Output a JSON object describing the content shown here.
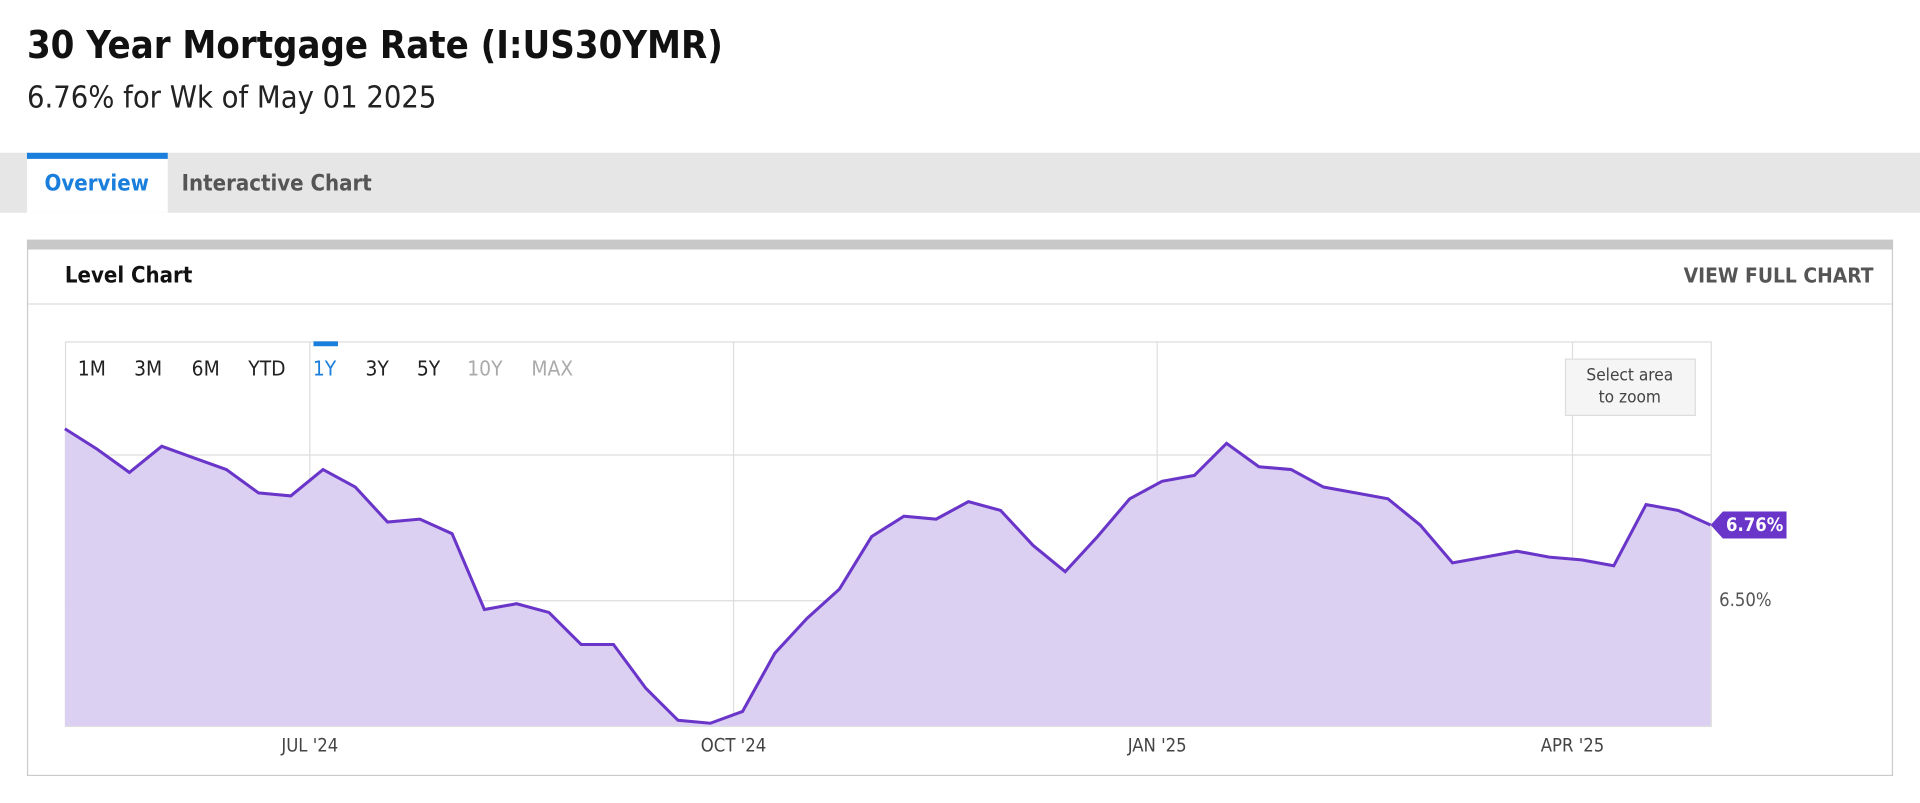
{
  "header": {
    "title": "30 Year Mortgage Rate (I:US30YMR)",
    "subtitle": "6.76% for Wk of May 01 2025"
  },
  "tabs": [
    "Overview",
    "Interactive Chart"
  ],
  "panel": {
    "title": "Level Chart",
    "link": "VIEW FULL CHART"
  },
  "ranges": [
    "1M",
    "3M",
    "6M",
    "YTD",
    "1Y",
    "3Y",
    "5Y",
    "10Y",
    "MAX"
  ],
  "zoom_hint": "Select area to zoom",
  "chart_data": {
    "type": "area",
    "color": "#6a35c9",
    "fill": "#dcd0f2",
    "x": [
      0,
      1,
      2,
      3,
      4,
      5,
      6,
      7,
      8,
      9,
      10,
      11,
      12,
      13,
      14,
      15,
      16,
      17,
      18,
      19,
      20,
      21,
      22,
      23,
      24,
      25,
      26,
      27,
      28,
      29,
      30,
      31,
      32,
      33,
      34,
      35,
      36,
      37,
      38,
      39,
      40,
      41,
      42,
      43,
      44,
      45,
      46,
      47,
      48,
      49,
      50,
      51
    ],
    "values": [
      7.09,
      7.02,
      6.94,
      7.03,
      6.99,
      6.95,
      6.87,
      6.86,
      6.95,
      6.89,
      6.77,
      6.78,
      6.73,
      6.47,
      6.49,
      6.46,
      6.35,
      6.35,
      6.2,
      6.09,
      6.08,
      6.12,
      6.32,
      6.44,
      6.54,
      6.72,
      6.79,
      6.78,
      6.84,
      6.81,
      6.69,
      6.6,
      6.72,
      6.85,
      6.91,
      6.93,
      7.04,
      6.96,
      6.95,
      6.89,
      6.87,
      6.85,
      6.76,
      6.63,
      6.65,
      6.67,
      6.65,
      6.64,
      6.62,
      6.83,
      6.81,
      6.76
    ],
    "end_label": "6.76%",
    "xlim": [
      0,
      51
    ],
    "xticks": [
      {
        "value": 7.59,
        "label": "JUL '24"
      },
      {
        "value": 20.72,
        "label": "OCT '24"
      },
      {
        "value": 33.85,
        "label": "JAN '25"
      },
      {
        "value": 46.72,
        "label": "APR '25"
      }
    ],
    "ylim": [
      6.071,
      7.39
    ],
    "yticks": [
      {
        "value": 6.5,
        "label": "6.50%"
      }
    ],
    "ygrid": [
      6.5,
      7
    ]
  }
}
